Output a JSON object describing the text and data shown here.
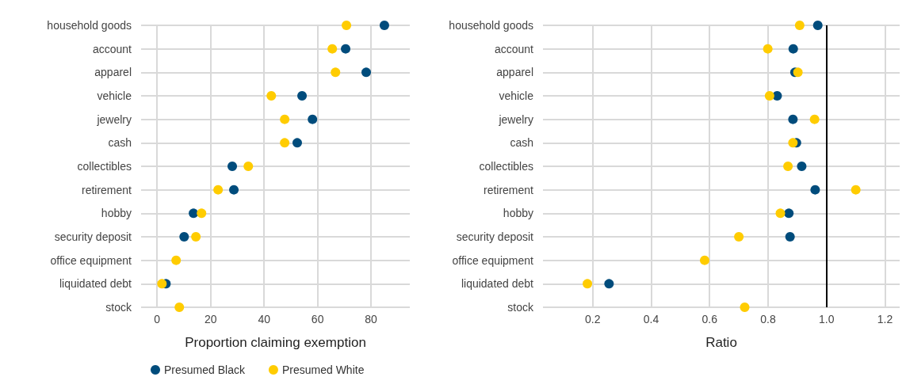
{
  "chart_data": [
    {
      "type": "scatter",
      "orientation": "horizontal",
      "xlabel": "Proportion claiming exemption",
      "categories": [
        "household goods",
        "account",
        "apparel",
        "vehicle",
        "jewelry",
        "cash",
        "collectibles",
        "retirement",
        "hobby",
        "security deposit",
        "office equipment",
        "liquidated debt",
        "stock"
      ],
      "series": [
        {
          "name": "Presumed Black",
          "color": "#004c7c",
          "values": [
            85,
            70.5,
            78.2,
            54.2,
            58.1,
            52.4,
            28.1,
            28.7,
            13.6,
            10.1,
            null,
            3.3,
            null
          ]
        },
        {
          "name": "Presumed White",
          "color": "#ffcc00",
          "values": [
            70.8,
            65.5,
            66.7,
            42.7,
            47.7,
            47.7,
            34.1,
            22.8,
            16.6,
            14.5,
            7.1,
            1.8,
            8.3
          ]
        }
      ],
      "xlim": [
        -6,
        94.5
      ],
      "xticks": [
        0,
        20,
        40,
        60,
        80
      ],
      "grid": true,
      "legend": "bottom",
      "marker": "circle"
    },
    {
      "type": "scatter",
      "orientation": "horizontal",
      "xlabel": "Ratio",
      "categories": [
        "household goods",
        "account",
        "apparel",
        "vehicle",
        "jewelry",
        "cash",
        "collectibles",
        "retirement",
        "hobby",
        "security deposit",
        "office equipment",
        "liquidated debt",
        "stock"
      ],
      "series": [
        {
          "color": "#004c7c",
          "values": [
            0.97,
            0.886,
            0.892,
            0.831,
            0.885,
            0.897,
            0.915,
            0.961,
            0.871,
            0.875,
            null,
            0.256,
            null
          ]
        },
        {
          "color": "#ffcc00",
          "values": [
            0.908,
            0.799,
            0.902,
            0.805,
            0.959,
            0.885,
            0.868,
            1.1,
            0.842,
            0.7,
            0.583,
            0.182,
            0.72
          ]
        }
      ],
      "xlim": [
        0.03,
        1.25
      ],
      "xticks": [
        0.2,
        0.4,
        0.6,
        0.8,
        {
          "value": 1,
          "label": "1.0"
        },
        1.2
      ],
      "grid": true,
      "marker": "circle",
      "ref_lines": [
        {
          "axis": "x",
          "value": 1,
          "color": "#000000"
        }
      ]
    }
  ]
}
